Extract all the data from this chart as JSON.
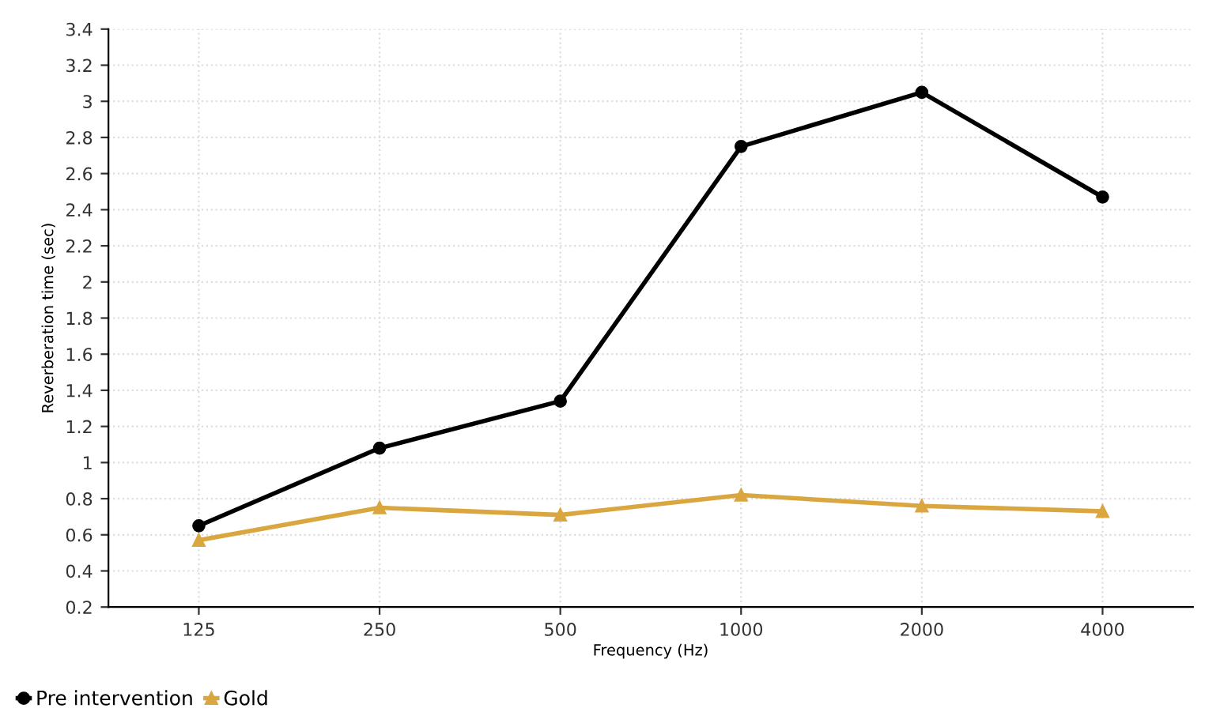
{
  "chart_data": {
    "type": "line",
    "xlabel": "Frequency (Hz)",
    "ylabel": "Reverberation time (sec)",
    "categories": [
      "125",
      "250",
      "500",
      "1000",
      "2000",
      "4000"
    ],
    "series": [
      {
        "name": "Pre intervention",
        "color": "#000000",
        "marker": "circle",
        "values": [
          0.65,
          1.08,
          1.34,
          2.75,
          3.05,
          2.47
        ]
      },
      {
        "name": "Gold",
        "color": "#d9a640",
        "marker": "triangle",
        "values": [
          0.57,
          0.75,
          0.71,
          0.82,
          0.76,
          0.73
        ]
      }
    ],
    "ylim": [
      0.2,
      3.4
    ],
    "yticks": [
      0.2,
      0.4,
      0.6,
      0.8,
      1,
      1.2,
      1.4,
      1.6,
      1.8,
      2,
      2.2,
      2.4,
      2.6,
      2.8,
      3,
      3.2,
      3.4
    ],
    "grid": true,
    "legend": "bottom left",
    "line_style": "solid"
  }
}
